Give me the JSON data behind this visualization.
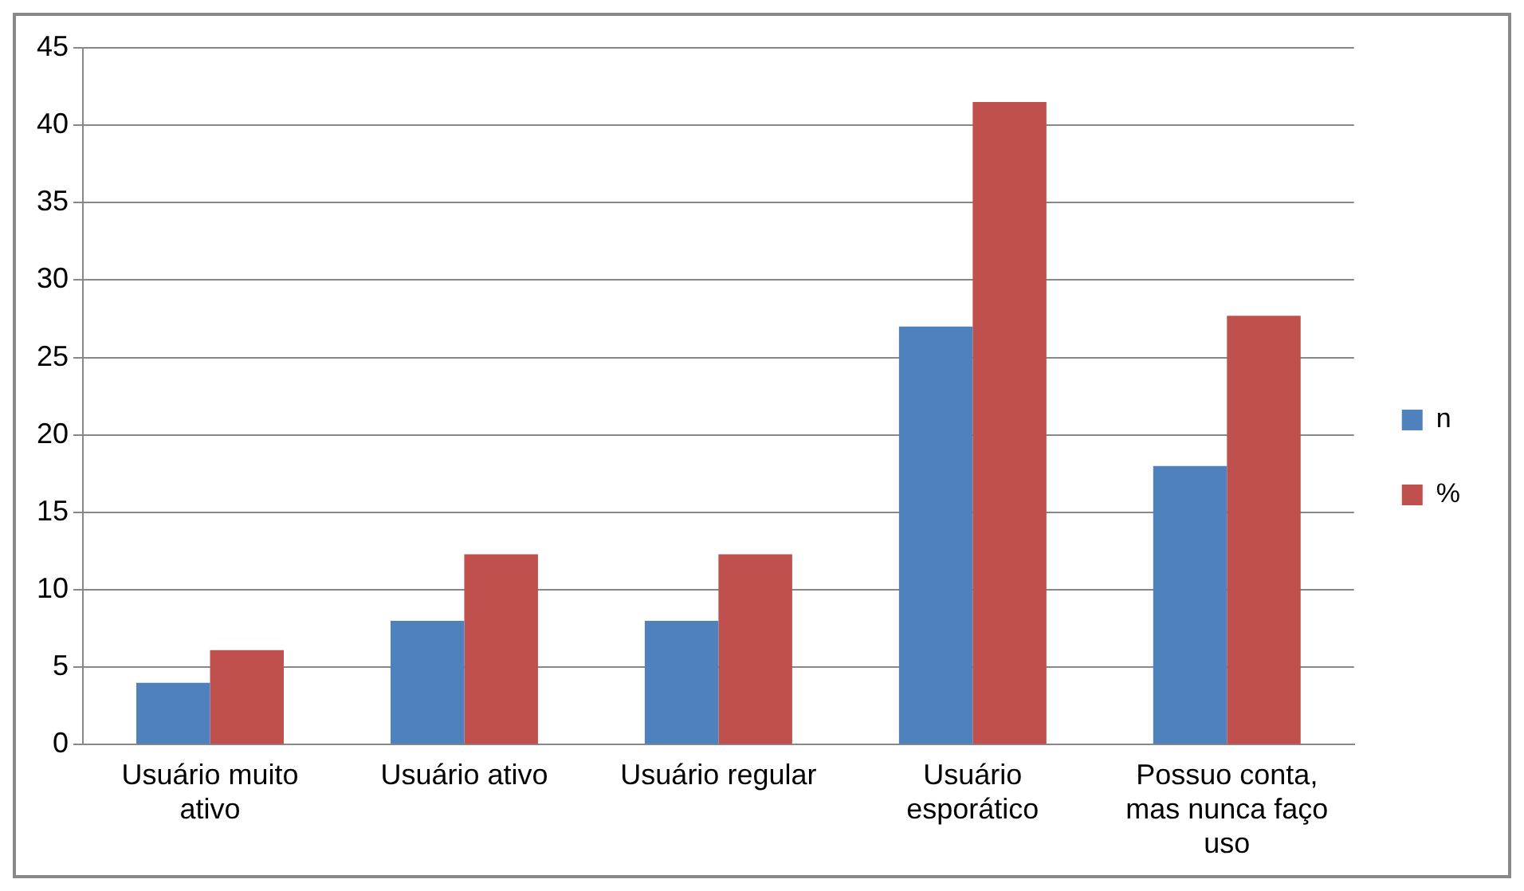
{
  "chart_data": {
    "type": "bar",
    "categories": [
      "Usuário muito ativo",
      "Usuário ativo",
      "Usuário regular",
      "Usuário esporático",
      "Possuo conta, mas nunca faço uso"
    ],
    "series": [
      {
        "name": "n",
        "color": "#4f81bd",
        "values": [
          4,
          8,
          8,
          27,
          18
        ]
      },
      {
        "name": "%",
        "color": "#c0504d",
        "values": [
          6.1,
          12.3,
          12.3,
          41.5,
          27.7
        ]
      }
    ],
    "ylim": [
      0,
      45
    ],
    "yticks": [
      0,
      5,
      10,
      15,
      20,
      25,
      30,
      35,
      40,
      45
    ],
    "grid": "y",
    "legend": "right"
  }
}
